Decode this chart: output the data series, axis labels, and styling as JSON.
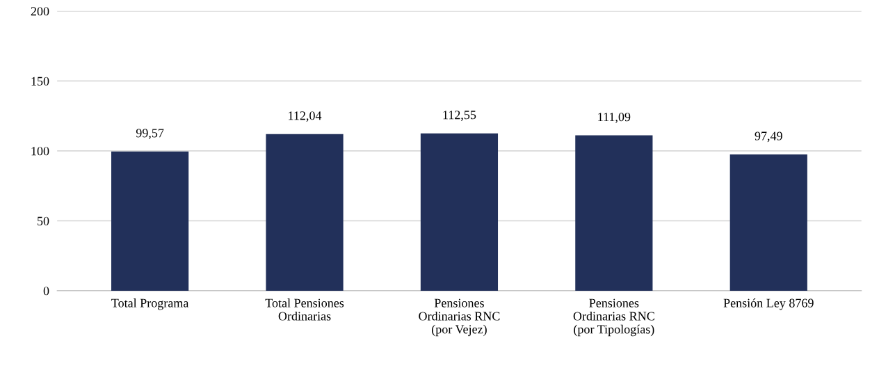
{
  "chart_data": {
    "type": "bar",
    "categories": [
      "Total Programa",
      "Total Pensiones\nOrdinarias",
      "Pensiones\nOrdinarias RNC\n(por Vejez)",
      "Pensiones\nOrdinarias RNC\n(por Tipologías)",
      "Pensión Ley 8769"
    ],
    "values": [
      99.57,
      112.04,
      112.55,
      111.09,
      97.49
    ],
    "value_labels": [
      "99,57",
      "112,04",
      "112,55",
      "111,09",
      "97,49"
    ],
    "color": "#22305a",
    "ylim": [
      0,
      200
    ],
    "yticks": [
      0,
      50,
      100,
      150,
      200
    ],
    "grid": "y",
    "legend": false
  }
}
